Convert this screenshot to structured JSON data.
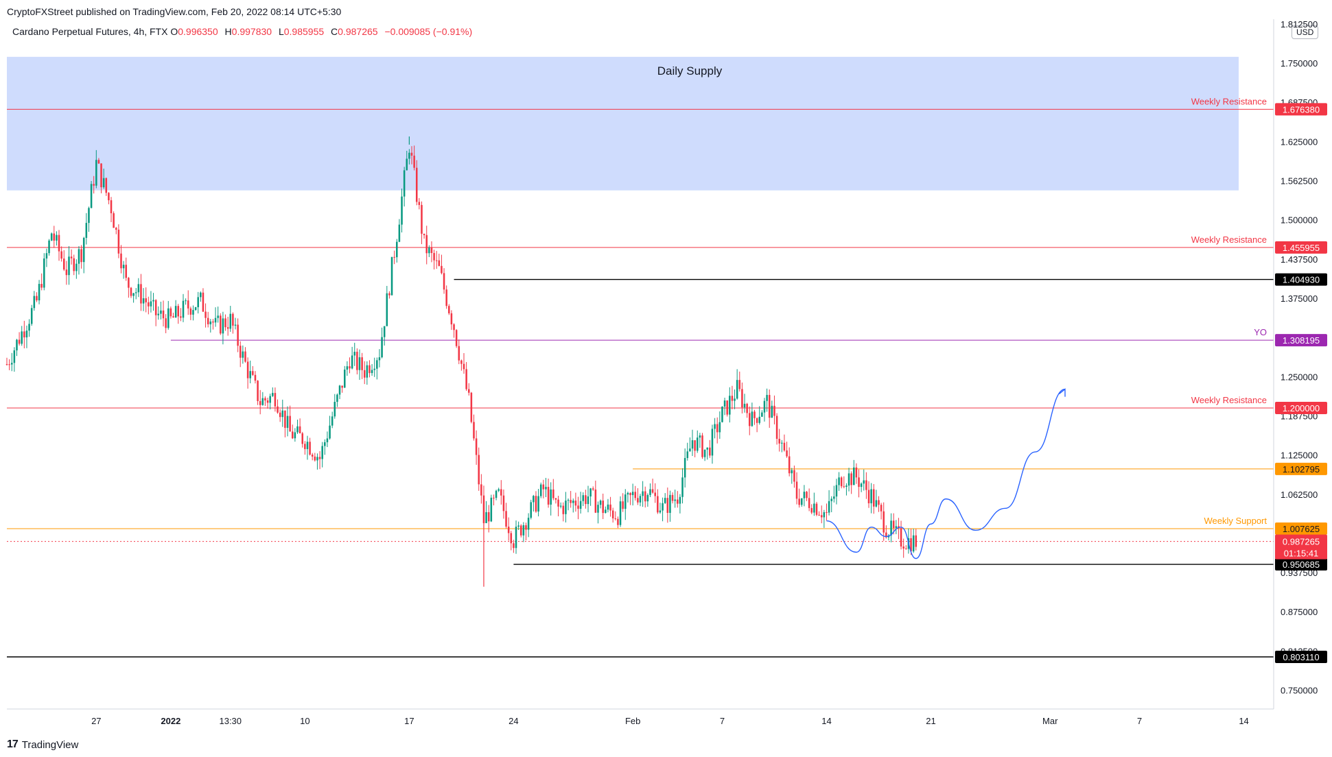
{
  "header": {
    "published_by": "CryptoFXStreet published on TradingView.com, Feb 20, 2022 08:14 UTC+5:30"
  },
  "legend": {
    "symbol": "Cardano Perpetual Futures, 4h, FTX",
    "open_label": "O",
    "open": "0.996350",
    "high_label": "H",
    "high": "0.997830",
    "low_label": "L",
    "low": "0.985955",
    "close_label": "C",
    "close": "0.987265",
    "change": "−0.009085 (−0.91%)"
  },
  "currency": "USD",
  "footer": {
    "brand": "TradingView"
  },
  "colors": {
    "up": "#089981",
    "down": "#f23645",
    "resistance": "#f23645",
    "support": "#ff9800",
    "yearly_open": "#9c27b0",
    "level": "#000000",
    "supply_zone": "#cfdcfd",
    "projection": "#2962ff"
  },
  "chart_data": {
    "type": "candlestick",
    "interval": "4h",
    "y_range": [
      0.72,
      1.82
    ],
    "x_range": [
      "2021-12-21",
      "2022-03-16"
    ],
    "y_ticks": [
      "1.812500",
      "1.750000",
      "1.687500",
      "1.625000",
      "1.562500",
      "1.500000",
      "1.437500",
      "1.375000",
      "1.250000",
      "1.187500",
      "1.125000",
      "1.062500",
      "0.937500",
      "0.875000",
      "0.812500",
      "0.750000"
    ],
    "x_ticks": [
      {
        "date": "2021-12-27",
        "label": "27"
      },
      {
        "date": "2022-01-01",
        "label": "2022"
      },
      {
        "date": "2022-01-05",
        "label": "13:30"
      },
      {
        "date": "2022-01-10",
        "label": "10"
      },
      {
        "date": "2022-01-17",
        "label": "17"
      },
      {
        "date": "2022-01-24",
        "label": "24"
      },
      {
        "date": "2022-02-01",
        "label": "Feb"
      },
      {
        "date": "2022-02-07",
        "label": "7"
      },
      {
        "date": "2022-02-14",
        "label": "14"
      },
      {
        "date": "2022-02-21",
        "label": "21"
      },
      {
        "date": "2022-03-01",
        "label": "Mar"
      },
      {
        "date": "2022-03-07",
        "label": "7"
      },
      {
        "date": "2022-03-14",
        "label": "14"
      }
    ],
    "zone": {
      "label": "Daily Supply",
      "from": 1.547,
      "to": 1.76
    },
    "levels": [
      {
        "value": 1.67638,
        "label": "1.676380",
        "title": "Weekly Resistance",
        "kind": "resistance",
        "start": "2021-12-21"
      },
      {
        "value": 1.455955,
        "label": "1.455955",
        "title": "Weekly Resistance",
        "kind": "resistance",
        "start": "2021-12-21"
      },
      {
        "value": 1.40493,
        "label": "1.404930",
        "title": "",
        "kind": "level",
        "start": "2022-01-20"
      },
      {
        "value": 1.308195,
        "label": "1.308195",
        "title": "YO",
        "kind": "yearly_open",
        "start": "2022-01-01"
      },
      {
        "value": 1.2,
        "label": "1.200000",
        "title": "Weekly Resistance",
        "kind": "resistance",
        "start": "2021-12-21"
      },
      {
        "value": 1.102795,
        "label": "1.102795",
        "title": "",
        "kind": "support",
        "start": "2022-02-01"
      },
      {
        "value": 1.007625,
        "label": "1.007625",
        "title": "Weekly Support",
        "kind": "support",
        "start": "2021-12-21"
      },
      {
        "value": 0.950685,
        "label": "0.950685",
        "title": "",
        "kind": "level",
        "start": "2022-01-24"
      },
      {
        "value": 0.80311,
        "label": "0.803110",
        "title": "",
        "kind": "level",
        "start": "2021-12-21"
      }
    ],
    "current_price": {
      "value": 0.987265,
      "label": "0.987265",
      "countdown": "01:15:41"
    },
    "swing_points": [
      [
        "2021-12-21",
        1.27
      ],
      [
        "2021-12-23",
        1.37
      ],
      [
        "2021-12-24",
        1.48
      ],
      [
        "2021-12-25",
        1.42
      ],
      [
        "2021-12-26",
        1.45
      ],
      [
        "2021-12-27",
        1.59
      ],
      [
        "2021-12-28",
        1.52
      ],
      [
        "2021-12-29",
        1.4
      ],
      [
        "2021-12-30",
        1.38
      ],
      [
        "2021-12-31",
        1.35
      ],
      [
        "2022-01-01",
        1.34
      ],
      [
        "2022-01-02",
        1.36
      ],
      [
        "2022-01-03",
        1.37
      ],
      [
        "2022-01-04",
        1.33
      ],
      [
        "2022-01-05",
        1.34
      ],
      [
        "2022-01-06",
        1.27
      ],
      [
        "2022-01-07",
        1.21
      ],
      [
        "2022-01-08",
        1.22
      ],
      [
        "2022-01-09",
        1.16
      ],
      [
        "2022-01-10",
        1.15
      ],
      [
        "2022-01-11",
        1.12
      ],
      [
        "2022-01-12",
        1.2
      ],
      [
        "2022-01-13",
        1.28
      ],
      [
        "2022-01-14",
        1.26
      ],
      [
        "2022-01-15",
        1.29
      ],
      [
        "2022-01-16",
        1.45
      ],
      [
        "2022-01-17",
        1.62
      ],
      [
        "2022-01-18",
        1.46
      ],
      [
        "2022-01-19",
        1.42
      ],
      [
        "2022-01-20",
        1.33
      ],
      [
        "2022-01-21",
        1.21
      ],
      [
        "2022-01-22",
        1.02
      ],
      [
        "2022-01-23",
        1.06
      ],
      [
        "2022-01-24",
        0.99
      ],
      [
        "2022-01-25",
        1.03
      ],
      [
        "2022-01-26",
        1.07
      ],
      [
        "2022-01-27",
        1.04
      ],
      [
        "2022-01-28",
        1.05
      ],
      [
        "2022-01-29",
        1.06
      ],
      [
        "2022-01-30",
        1.04
      ],
      [
        "2022-01-31",
        1.03
      ],
      [
        "2022-02-01",
        1.06
      ],
      [
        "2022-02-02",
        1.07
      ],
      [
        "2022-02-03",
        1.04
      ],
      [
        "2022-02-04",
        1.06
      ],
      [
        "2022-02-05",
        1.15
      ],
      [
        "2022-02-06",
        1.13
      ],
      [
        "2022-02-07",
        1.19
      ],
      [
        "2022-02-08",
        1.23
      ],
      [
        "2022-02-09",
        1.18
      ],
      [
        "2022-02-10",
        1.21
      ],
      [
        "2022-02-11",
        1.14
      ],
      [
        "2022-02-12",
        1.06
      ],
      [
        "2022-02-13",
        1.05
      ],
      [
        "2022-02-14",
        1.03
      ],
      [
        "2022-02-15",
        1.09
      ],
      [
        "2022-02-16",
        1.09
      ],
      [
        "2022-02-17",
        1.06
      ],
      [
        "2022-02-18",
        1.01
      ],
      [
        "2022-02-19",
        0.99
      ],
      [
        "2022-02-20",
        0.987
      ]
    ],
    "extremes": [
      [
        "2022-01-22",
        0.915
      ],
      [
        "2022-01-17",
        1.633
      ],
      [
        "2021-12-27",
        1.595
      ]
    ],
    "projection": [
      [
        "2022-02-14",
        1.02
      ],
      [
        "2022-02-16",
        0.97
      ],
      [
        "2022-02-17",
        1.01
      ],
      [
        "2022-02-18",
        0.995
      ],
      [
        "2022-02-19",
        1.01
      ],
      [
        "2022-02-20",
        0.96
      ],
      [
        "2022-02-21",
        1.015
      ],
      [
        "2022-02-22",
        1.055
      ],
      [
        "2022-02-24",
        1.005
      ],
      [
        "2022-02-26",
        1.04
      ],
      [
        "2022-02-28",
        1.13
      ],
      [
        "2022-03-02",
        1.23
      ]
    ]
  }
}
